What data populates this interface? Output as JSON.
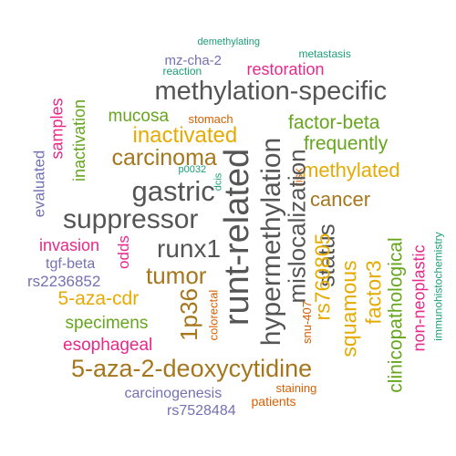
{
  "colors": {
    "teal": "#1b9e77",
    "orange": "#d95f02",
    "purple": "#7570b3",
    "magenta": "#e7298a",
    "green": "#66a61e",
    "gold": "#e6ab02",
    "brown": "#a6761d",
    "gray": "#555555"
  },
  "words": [
    {
      "id": "demethylating",
      "text": "demethylating",
      "color": "teal",
      "rotated": false
    },
    {
      "id": "metastasis",
      "text": "metastasis",
      "color": "teal",
      "rotated": false
    },
    {
      "id": "mz-cha-2",
      "text": "mz-cha-2",
      "color": "purple",
      "rotated": false
    },
    {
      "id": "reaction",
      "text": "reaction",
      "color": "teal",
      "rotated": false
    },
    {
      "id": "restoration",
      "text": "restoration",
      "color": "magenta",
      "rotated": false
    },
    {
      "id": "methylation-specific",
      "text": "methylation-specific",
      "color": "gray",
      "rotated": false
    },
    {
      "id": "inactivation",
      "text": "inactivation",
      "color": "green",
      "rotated": true
    },
    {
      "id": "samples",
      "text": "samples",
      "color": "magenta",
      "rotated": true
    },
    {
      "id": "mucosa",
      "text": "mucosa",
      "color": "green",
      "rotated": false
    },
    {
      "id": "stomach",
      "text": "stomach",
      "color": "orange",
      "rotated": false
    },
    {
      "id": "factor-beta",
      "text": "factor-beta",
      "color": "green",
      "rotated": false
    },
    {
      "id": "inactivated",
      "text": "inactivated",
      "color": "gold",
      "rotated": false
    },
    {
      "id": "frequently",
      "text": "frequently",
      "color": "green",
      "rotated": false
    },
    {
      "id": "carcinoma",
      "text": "carcinoma",
      "color": "brown",
      "rotated": false
    },
    {
      "id": "p0032",
      "text": "p0032",
      "color": "teal",
      "rotated": false
    },
    {
      "id": "methylated",
      "text": "methylated",
      "color": "gold",
      "rotated": false
    },
    {
      "id": "evaluated",
      "text": "evaluated",
      "color": "purple",
      "rotated": true
    },
    {
      "id": "gastric",
      "text": "gastric",
      "color": "gray",
      "rotated": false
    },
    {
      "id": "dcis",
      "text": "dcis",
      "color": "teal",
      "rotated": true
    },
    {
      "id": "risk",
      "text": "risk",
      "color": "orange",
      "rotated": true
    },
    {
      "id": "runt-related",
      "text": "runt-related",
      "color": "gray",
      "rotated": true
    },
    {
      "id": "hypermethylation",
      "text": "hypermethylation",
      "color": "gray",
      "rotated": true
    },
    {
      "id": "mislocalization",
      "text": "mislocalization",
      "color": "gray",
      "rotated": true
    },
    {
      "id": "cancer",
      "text": "cancer",
      "color": "brown",
      "rotated": false
    },
    {
      "id": "suppressor",
      "text": "suppressor",
      "color": "gray",
      "rotated": false
    },
    {
      "id": "invasion",
      "text": "invasion",
      "color": "magenta",
      "rotated": false
    },
    {
      "id": "odds",
      "text": "odds",
      "color": "magenta",
      "rotated": true
    },
    {
      "id": "runx1",
      "text": "runx1",
      "color": "gray",
      "rotated": false
    },
    {
      "id": "status",
      "text": "status",
      "color": "gray",
      "rotated": true
    },
    {
      "id": "rs760805",
      "text": "rs760805",
      "color": "gold",
      "rotated": true
    },
    {
      "id": "tgf-beta",
      "text": "tgf-beta",
      "color": "purple",
      "rotated": false
    },
    {
      "id": "rs2236852",
      "text": "rs2236852",
      "color": "purple",
      "rotated": false
    },
    {
      "id": "tumor",
      "text": "tumor",
      "color": "brown",
      "rotated": false
    },
    {
      "id": "5-aza-cdr",
      "text": "5-aza-cdr",
      "color": "gold",
      "rotated": false
    },
    {
      "id": "1p36",
      "text": "1p36",
      "color": "brown",
      "rotated": true
    },
    {
      "id": "colorectal",
      "text": "colorectal",
      "color": "orange",
      "rotated": true
    },
    {
      "id": "snu-407",
      "text": "snu-407",
      "color": "orange",
      "rotated": true
    },
    {
      "id": "squamous",
      "text": "squamous",
      "color": "gold",
      "rotated": true
    },
    {
      "id": "factor3",
      "text": "factor3",
      "color": "gold",
      "rotated": true
    },
    {
      "id": "clinicopathological",
      "text": "clinicopathological",
      "color": "green",
      "rotated": true
    },
    {
      "id": "non-neoplastic",
      "text": "non-neoplastic",
      "color": "magenta",
      "rotated": true
    },
    {
      "id": "immunohistochemistry",
      "text": "immunohistochemistry",
      "color": "teal",
      "rotated": true
    },
    {
      "id": "specimens",
      "text": "specimens",
      "color": "green",
      "rotated": false
    },
    {
      "id": "esophageal",
      "text": "esophageal",
      "color": "magenta",
      "rotated": false
    },
    {
      "id": "5-aza-2-deoxycytidine",
      "text": "5-aza-2-deoxycytidine",
      "color": "brown",
      "rotated": false
    },
    {
      "id": "staining",
      "text": "staining",
      "color": "orange",
      "rotated": false
    },
    {
      "id": "carcinogenesis",
      "text": "carcinogenesis",
      "color": "purple",
      "rotated": false
    },
    {
      "id": "patients",
      "text": "patients",
      "color": "orange",
      "rotated": false
    },
    {
      "id": "rs7528484",
      "text": "rs7528484",
      "color": "purple",
      "rotated": false
    }
  ]
}
